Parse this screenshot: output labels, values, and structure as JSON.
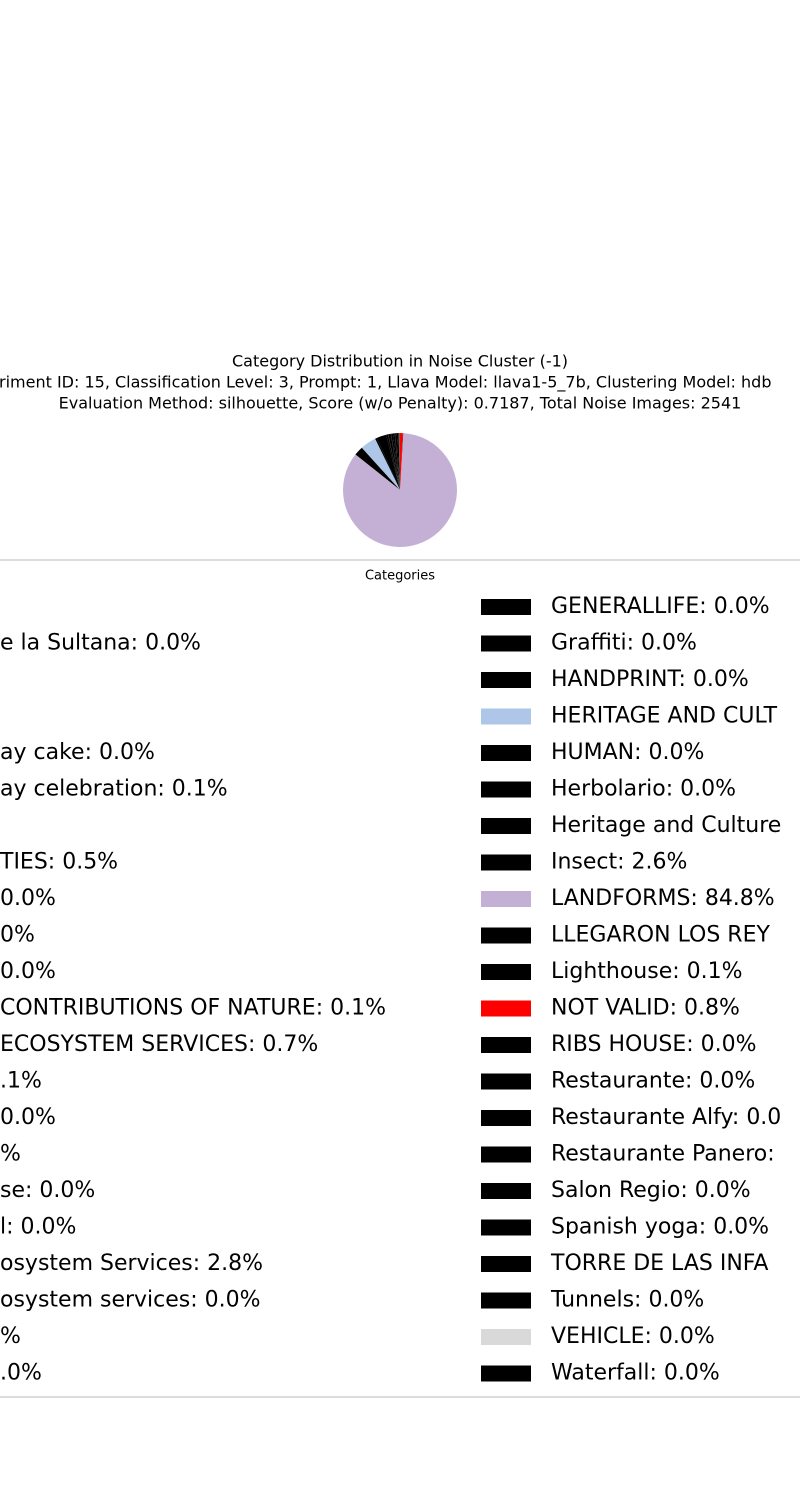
{
  "chart_data": {
    "type": "pie",
    "title_lines": [
      "Category Distribution in Noise Cluster (-1)",
      "riment ID: 15, Classification Level: 3, Prompt: 1, Llava Model: llava1-5_7b, Clustering Model: hdb",
      "Evaluation Method: silhouette, Score (w/o Penalty): 0.7187, Total Noise Images: 2541"
    ],
    "legend_title": "Categories",
    "legend_labels": [
      null,
      "e la Sultana: 0.0%",
      null,
      null,
      "ay cake: 0.0%",
      "ay celebration: 0.1%",
      null,
      "TIES: 0.5%",
      "0.0%",
      "0%",
      "0.0%",
      "CONTRIBUTIONS OF NATURE: 0.1%",
      "ECOSYSTEM SERVICES: 0.7%",
      ".1%",
      "0.0%",
      "%",
      "se: 0.0%",
      "l: 0.0%",
      "osystem Services: 2.8%",
      "osystem services: 0.0%",
      "%",
      ".0%",
      "GENERALLIFE: 0.0%",
      "Graffiti: 0.0%",
      "HANDPRINT: 0.0%",
      "HERITAGE AND CULT",
      "HUMAN: 0.0%",
      "Herbolario: 0.0%",
      "Heritage and Culture",
      "Insect: 2.6%",
      "LANDFORMS: 84.8%",
      "LLEGARON LOS REY",
      "Lighthouse: 0.1%",
      "NOT VALID: 0.8%",
      "RIBS HOUSE: 0.0%",
      "Restaurante: 0.0%",
      "Restaurante Alfy: 0.0",
      "Restaurante Panero:",
      "Salon Regio: 0.0%",
      "Spanish yoga: 0.0%",
      "TORRE DE LAS INFA",
      "Tunnels: 0.0%",
      "VEHICLE: 0.0%",
      "Waterfall: 0.0%"
    ],
    "values": [
      0.4,
      0.0,
      0.5,
      0.5,
      0.0,
      0.1,
      0.5,
      0.5,
      0.0,
      0.0,
      0.0,
      0.1,
      0.7,
      0.1,
      0.0,
      0.5,
      0.0,
      0.0,
      2.8,
      0.0,
      0.5,
      0.0,
      0.0,
      0.0,
      0.0,
      4.5,
      0.0,
      0.0,
      0.0,
      2.6,
      84.8,
      0.0,
      0.1,
      0.8,
      0.0,
      0.0,
      0.0,
      0.0,
      0.0,
      0.0,
      0.0,
      0.0,
      0.0,
      0.0
    ],
    "colors": [
      "#8c564b",
      "#000000",
      "#000000",
      "#000000",
      "#000000",
      "#000000",
      "#000000",
      "#000000",
      "#000000",
      "#000000",
      "#000000",
      "#000000",
      "#000000",
      "#000000",
      "#000000",
      "#000000",
      "#000000",
      "#000000",
      "#000000",
      "#000000",
      "#000000",
      "#000000",
      "#000000",
      "#000000",
      "#000000",
      "#aec7e8",
      "#000000",
      "#000000",
      "#000000",
      "#000000",
      "#c5b0d5",
      "#000000",
      "#000000",
      "#ff0000",
      "#000000",
      "#000000",
      "#000000",
      "#000000",
      "#000000",
      "#000000",
      "#000000",
      "#000000",
      "#d9d9d9",
      "#000000"
    ]
  }
}
